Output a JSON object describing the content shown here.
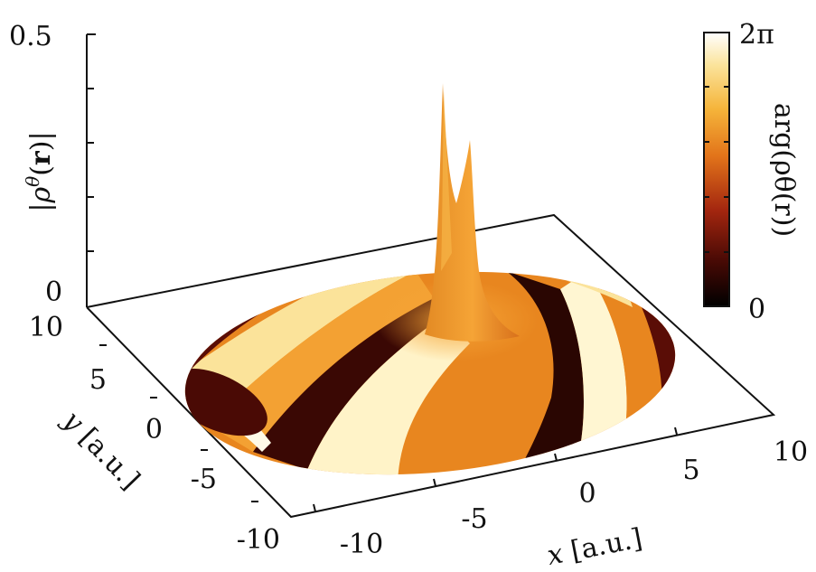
{
  "chart_data": {
    "type": "surface",
    "z_axis": {
      "label": "|ρ^θ(r)|",
      "label_parts": {
        "open": "|",
        "rho": "ρ",
        "theta": "θ",
        "paren_open": "(",
        "r": "r",
        "paren_close": ")",
        "close": "|"
      },
      "ticks": [
        "0.5",
        "0"
      ],
      "range": [
        0,
        0.5
      ]
    },
    "x_axis": {
      "label": "x [a.u.]",
      "label_var": "x",
      "label_unit": "[a.u.]",
      "ticks": [
        "-10",
        "-5",
        "0",
        "5",
        "10"
      ],
      "range": [
        -10,
        10
      ]
    },
    "y_axis": {
      "label": "y [a.u.]",
      "label_var": "y",
      "label_unit": "[a.u.]",
      "ticks": [
        "10",
        "5",
        "0",
        "-5",
        "-10"
      ],
      "range": [
        -10,
        10
      ]
    },
    "colorbar": {
      "label": "arg(ρ^θ(r))",
      "label_text": "arg(ρθ(r))",
      "min_label": "0",
      "max_label": "2π",
      "range": [
        0,
        6.2832
      ],
      "colormap": [
        "#000000",
        "#4a0a05",
        "#a3260f",
        "#e2741a",
        "#f5b43a",
        "#fbe39a",
        "#ffffff"
      ]
    },
    "surface": {
      "domain": "disk",
      "radius": 10,
      "peaks": [
        {
          "x": 1.0,
          "y": 0.4,
          "height": 0.43
        },
        {
          "x": 1.5,
          "y": -0.6,
          "height": 0.32
        }
      ]
    }
  }
}
